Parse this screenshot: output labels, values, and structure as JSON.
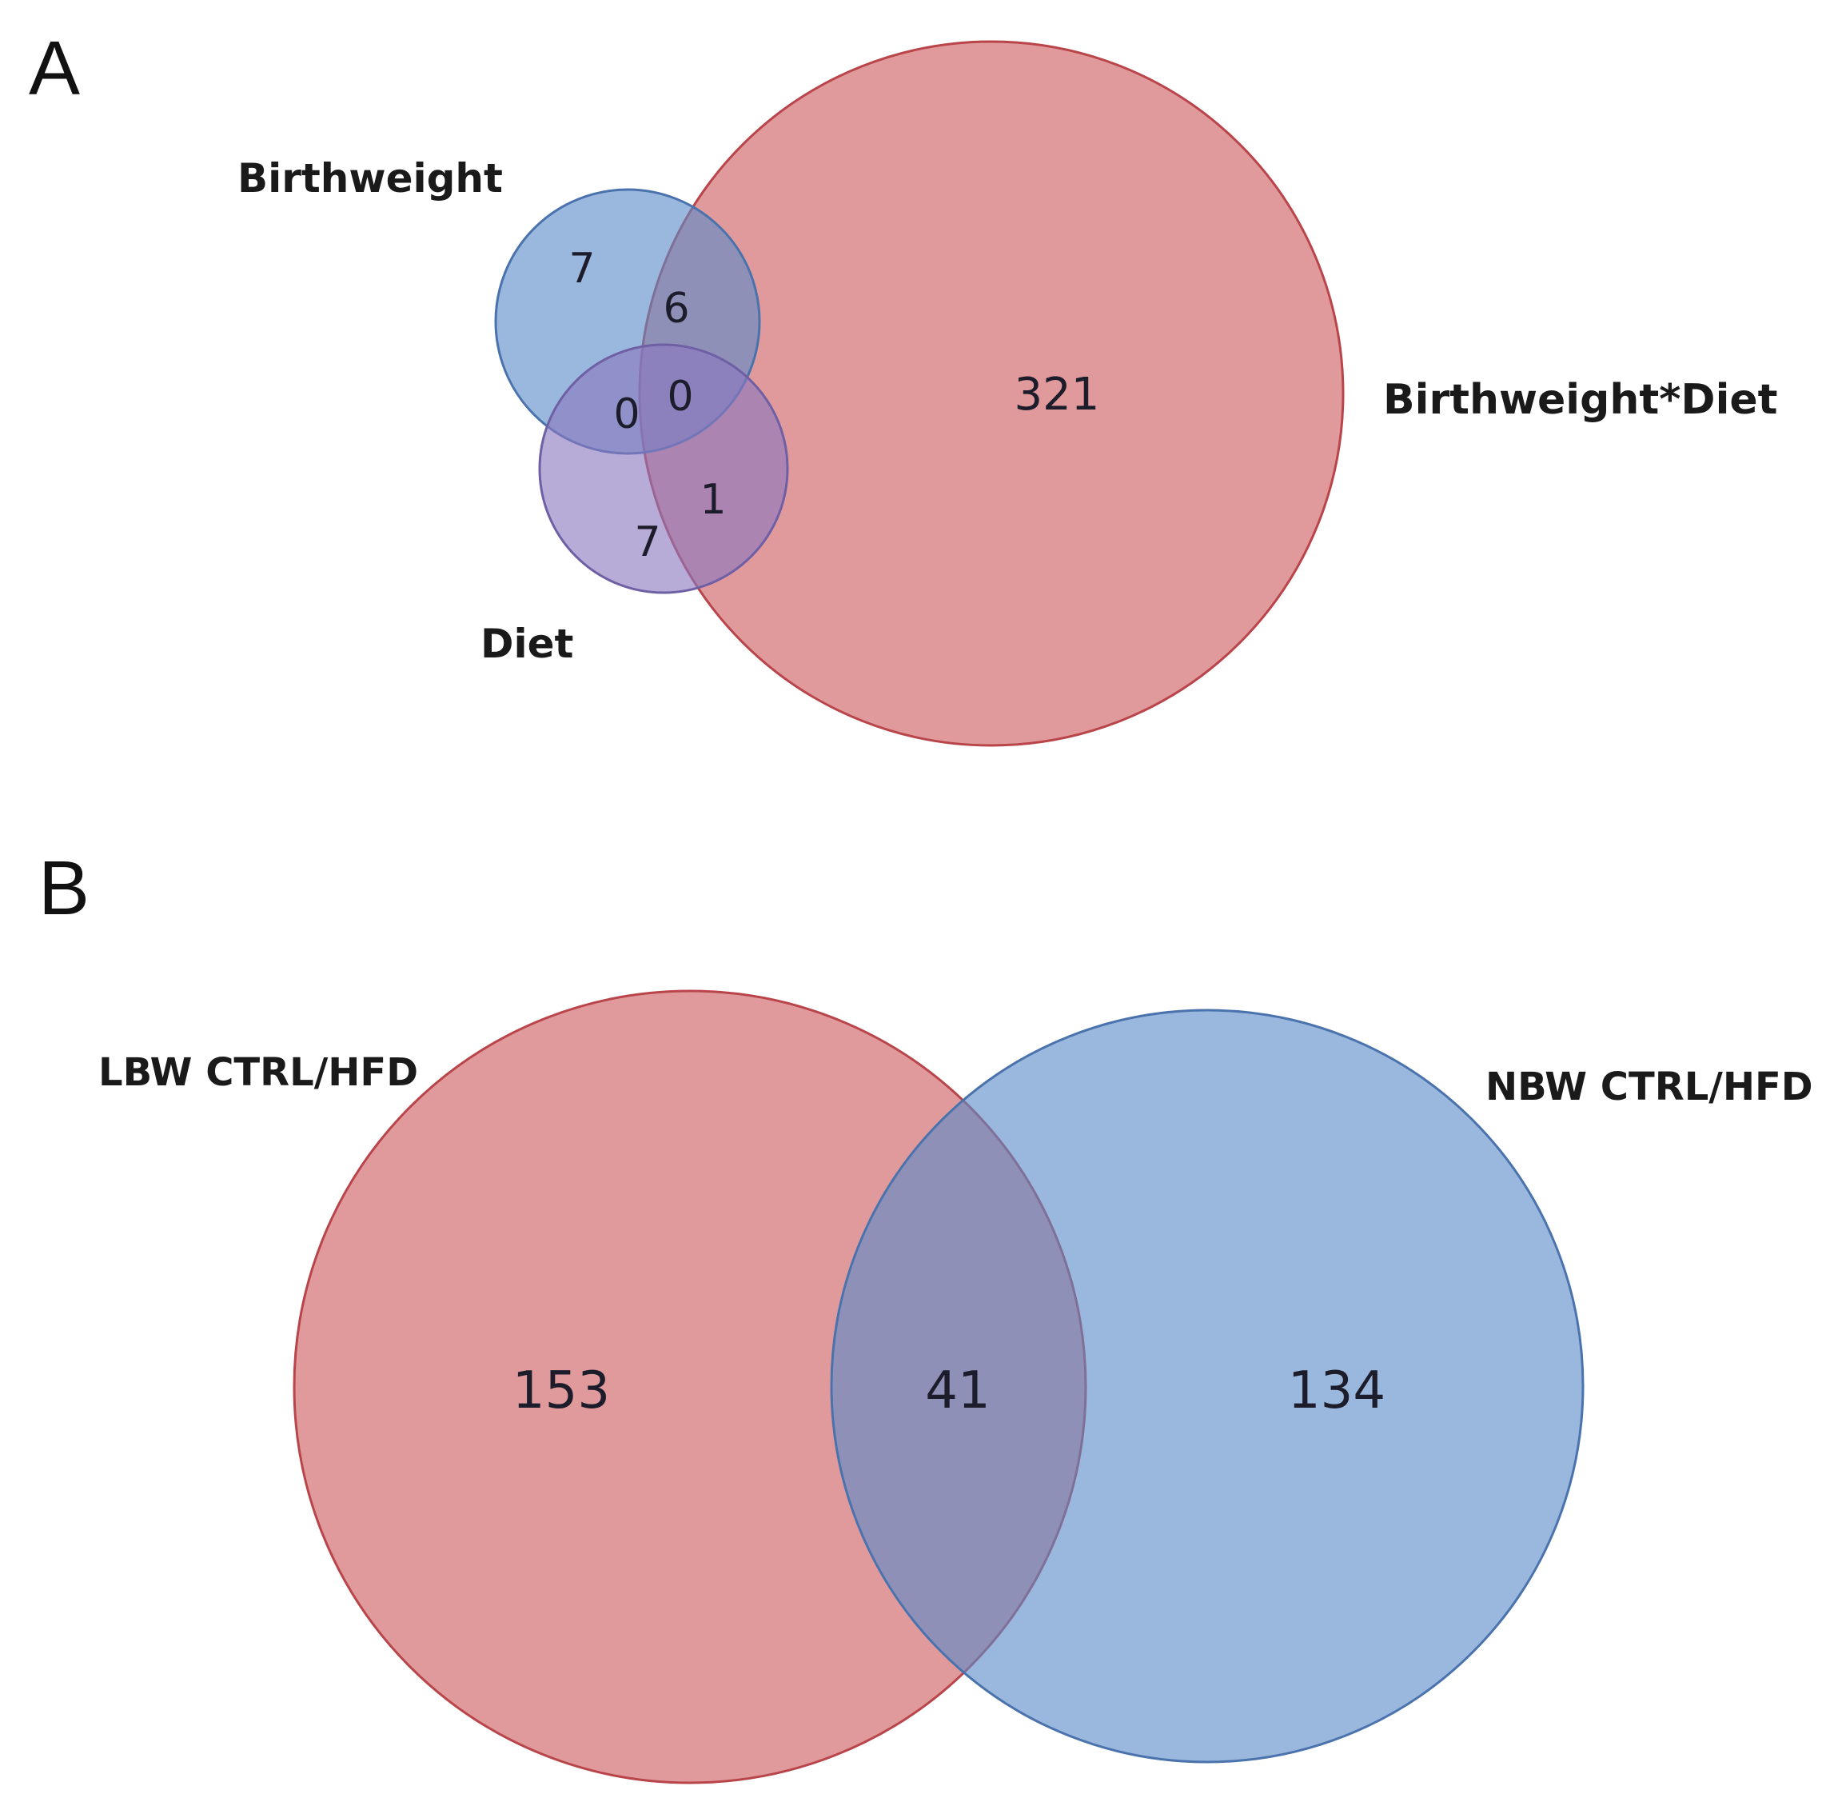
{
  "colors": {
    "red": "#cd5c5f",
    "blue": "#5c8ac8",
    "purple": "#8a78be",
    "red_stroke": "#b9454a",
    "blue_stroke": "#4a73ad",
    "purple_stroke": "#6f5fa5"
  },
  "panel_a": {
    "letter": "A",
    "sets": {
      "birthweight": "Birthweight",
      "interaction": "Birthweight*Diet",
      "diet": "Diet"
    },
    "counts": {
      "birthweight_only": "7",
      "birthweight_interaction": "6",
      "birthweight_diet": "0",
      "all_three": "0",
      "diet_interaction": "1",
      "diet_only": "7",
      "interaction_only": "321"
    }
  },
  "panel_b": {
    "letter": "B",
    "sets": {
      "lbw": "LBW CTRL/HFD",
      "nbw": "NBW CTRL/HFD"
    },
    "counts": {
      "lbw_only": "153",
      "overlap": "41",
      "nbw_only": "134"
    }
  }
}
